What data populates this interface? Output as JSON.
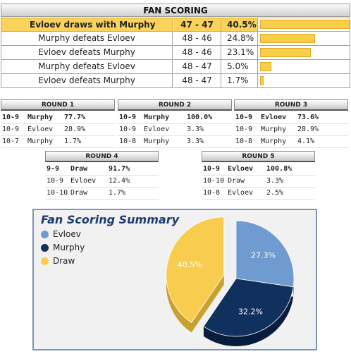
{
  "fan_scoring": {
    "title": "FAN SCORING",
    "rows": [
      {
        "label": "Evloev draws with Murphy",
        "score": "47 - 47",
        "pct": "40.5%",
        "value": 40.5
      },
      {
        "label": "Murphy defeats Evloev",
        "score": "48 - 46",
        "pct": "24.8%",
        "value": 24.8
      },
      {
        "label": "Evloev defeats Murphy",
        "score": "48 - 46",
        "pct": "23.1%",
        "value": 23.1
      },
      {
        "label": "Murphy defeats Evloev",
        "score": "48 - 47",
        "pct": "5.0%",
        "value": 5.0
      },
      {
        "label": "Evloev defeats Murphy",
        "score": "48 - 47",
        "pct": "1.7%",
        "value": 1.7
      }
    ]
  },
  "rounds": [
    {
      "title": "ROUND 1",
      "rows": [
        [
          "10-9",
          "Murphy",
          "77.7%"
        ],
        [
          "10-9",
          "Evloev",
          "28.9%"
        ],
        [
          "10-7",
          "Murphy",
          "1.7%"
        ]
      ]
    },
    {
      "title": "ROUND 2",
      "rows": [
        [
          "10-9",
          "Murphy",
          "100.0%"
        ],
        [
          "10-9",
          "Evloev",
          "3.3%"
        ],
        [
          "10-8",
          "Murphy",
          "3.3%"
        ]
      ]
    },
    {
      "title": "ROUND 3",
      "rows": [
        [
          "10-9",
          "Evloev",
          "73.6%"
        ],
        [
          "10-9",
          "Murphy",
          "28.9%"
        ],
        [
          "10-8",
          "Murphy",
          "4.1%"
        ]
      ]
    },
    {
      "title": "ROUND 4",
      "rows": [
        [
          "9-9",
          "Draw",
          "91.7%"
        ],
        [
          "10-9",
          "Evloev",
          "12.4%"
        ],
        [
          "10-10",
          "Draw",
          "1.7%"
        ]
      ]
    },
    {
      "title": "ROUND 5",
      "rows": [
        [
          "10-9",
          "Evloev",
          "100.8%"
        ],
        [
          "10-10",
          "Draw",
          "3.3%"
        ],
        [
          "10-8",
          "Evloev",
          "2.5%"
        ]
      ]
    }
  ],
  "chart_data": [
    {
      "type": "bar",
      "title": "FAN SCORING",
      "categories": [
        "Evloev draws with Murphy",
        "Murphy defeats Evloev",
        "Evloev defeats Murphy",
        "Murphy defeats Evloev",
        "Evloev defeats Murphy"
      ],
      "values": [
        40.5,
        24.8,
        23.1,
        5.0,
        1.7
      ],
      "color": "#f9cf4a"
    },
    {
      "type": "pie",
      "title": "Fan Scoring Summary",
      "categories": [
        "Evloev",
        "Murphy",
        "Draw"
      ],
      "values": [
        27.3,
        32.2,
        40.5
      ],
      "labels": [
        "27.3%",
        "32.2%",
        "40.5%"
      ],
      "colors": [
        "#6f9bd0",
        "#10305e",
        "#f8cd4f"
      ],
      "legend": "top-left"
    }
  ]
}
